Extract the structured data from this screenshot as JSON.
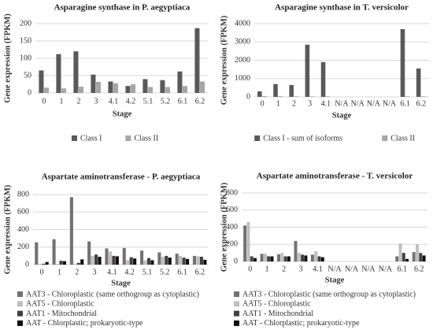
{
  "chart_data": [
    {
      "type": "bar",
      "title": "Asparagine synthase in P. aegyptiaca",
      "x_label": "Stage",
      "y_label": "Gene expression (FPKM)",
      "categories": [
        "0",
        "1",
        "2",
        "3",
        "4.1",
        "4.2",
        "5.1",
        "5.2",
        "6.1",
        "6.2"
      ],
      "series": [
        {
          "name": "Class I",
          "color": "#595959",
          "values": [
            65,
            112,
            120,
            53,
            33,
            20,
            40,
            37,
            62,
            187
          ]
        },
        {
          "name": "Class II",
          "color": "#a6a6a6",
          "values": [
            15,
            13,
            18,
            32,
            28,
            25,
            17,
            17,
            20,
            33
          ]
        }
      ],
      "ylim": [
        0,
        200
      ],
      "yticks": [
        0,
        50,
        100,
        150,
        200
      ],
      "grid": true,
      "legend": "bottom"
    },
    {
      "type": "bar",
      "title": "Asparagine synthase in T. versicolor",
      "x_label": "Stage",
      "y_label": "Gene expression (FPKM)",
      "categories": [
        "0",
        "1",
        "2",
        "3",
        "4.1",
        "N/A",
        "N/A",
        "N/A",
        "N/A",
        "6.1",
        "6.2"
      ],
      "series": [
        {
          "name": "Class I - sum of isoforms",
          "color": "#595959",
          "values": [
            300,
            700,
            650,
            2850,
            1900,
            null,
            null,
            null,
            null,
            3700,
            1550
          ]
        },
        {
          "name": "Class II",
          "color": "#a6a6a6",
          "values": [
            50,
            40,
            30,
            30,
            30,
            null,
            null,
            null,
            null,
            30,
            30
          ]
        }
      ],
      "ylim": [
        0,
        4000
      ],
      "yticks": [
        0,
        1000,
        2000,
        3000,
        4000
      ],
      "grid": true,
      "legend": "bottom"
    },
    {
      "type": "bar",
      "title": "Aspartate aminotransferase - P. aegyptiaca",
      "x_label": "Stage",
      "y_label": "Gene expression (FPKM)",
      "categories": [
        "0",
        "1",
        "2",
        "3",
        "4.1",
        "4.2",
        "5.1",
        "5.2",
        "6.1",
        "6.2"
      ],
      "series": [
        {
          "name": "AAT3 - Chloroplastic (same orthogroup as cytoplastic)",
          "color": "#767171",
          "values": [
            255,
            290,
            770,
            265,
            185,
            190,
            160,
            140,
            125,
            100
          ]
        },
        {
          "name": "AAT5 - Chloroplastic",
          "color": "#bfbfbf",
          "values": [
            10,
            10,
            10,
            100,
            150,
            50,
            50,
            90,
            100,
            95
          ]
        },
        {
          "name": "AAT1 - Mitochondrial",
          "color": "#404040",
          "values": [
            10,
            45,
            20,
            115,
            100,
            85,
            75,
            100,
            80,
            90
          ]
        },
        {
          "name": "AAT - Chlorplastic; prokaryotic-type",
          "color": "#0d0d0d",
          "values": [
            30,
            40,
            60,
            90,
            95,
            70,
            50,
            80,
            65,
            55
          ]
        }
      ],
      "ylim": [
        0,
        800
      ],
      "yticks": [
        0,
        200,
        400,
        600,
        800
      ],
      "grid": true,
      "legend": "bottom"
    },
    {
      "type": "bar",
      "title": "Aspartate aminotransferase - T. versicolor",
      "x_label": "Stage",
      "y_label": "Gene expression (FPKM)",
      "categories": [
        "0",
        "1",
        "2",
        "3",
        "4.1",
        "N/A",
        "N/A",
        "N/A",
        "N/A",
        "6.1",
        "6.2"
      ],
      "series": [
        {
          "name": "AAT3 - Chloroplastic (same orthogroup as cytoplastic)",
          "color": "#767171",
          "values": [
            420,
            90,
            85,
            240,
            80,
            null,
            null,
            null,
            null,
            60,
            110
          ]
        },
        {
          "name": "AAT5 - Chloroplastic",
          "color": "#bfbfbf",
          "values": [
            460,
            90,
            100,
            100,
            120,
            null,
            null,
            null,
            null,
            210,
            200
          ]
        },
        {
          "name": "AAT1 - Mitochondrial",
          "color": "#404040",
          "values": [
            60,
            60,
            60,
            80,
            60,
            null,
            null,
            null,
            null,
            100,
            100
          ]
        },
        {
          "name": "AAT - Chlorplastic; prokaryotic-type",
          "color": "#0d0d0d",
          "values": [
            40,
            60,
            60,
            70,
            50,
            null,
            null,
            null,
            null,
            30,
            70
          ]
        }
      ],
      "ylim": [
        0,
        800
      ],
      "yticks": [
        0,
        200,
        400,
        600,
        800
      ],
      "grid": true,
      "legend": "bottom"
    }
  ]
}
